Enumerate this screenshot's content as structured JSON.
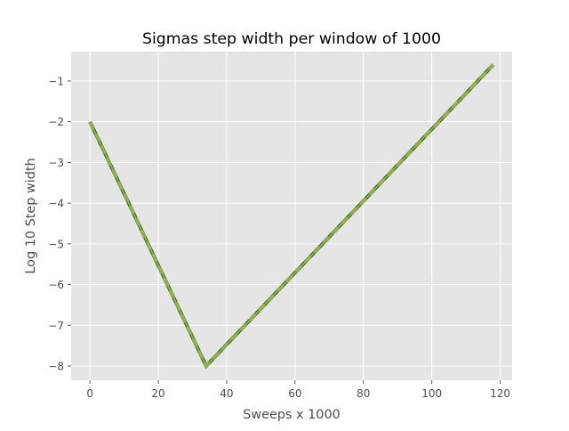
{
  "chart_data": {
    "type": "line",
    "title": "Sigmas step width per window of 1000",
    "xlabel": "Sweeps x 1000",
    "ylabel": "Log 10 Step width",
    "xlim": [
      -5.5,
      123.5
    ],
    "ylim": [
      -8.35,
      -0.28
    ],
    "x_ticks": [
      0,
      20,
      40,
      60,
      80,
      100,
      120
    ],
    "y_ticks": [
      -8,
      -7,
      -6,
      -5,
      -4,
      -3,
      -2,
      -1
    ],
    "x_tick_labels": [
      "0",
      "20",
      "40",
      "60",
      "80",
      "100",
      "120"
    ],
    "y_tick_labels": [
      "−8",
      "−7",
      "−6",
      "−5",
      "−4",
      "−3",
      "−2",
      "−1"
    ],
    "grid": true,
    "style": "ggplot",
    "colors": {
      "axes_background": "#e5e5e5",
      "grid": "#ffffff",
      "series": [
        "#2d6a2d",
        "#d6c36a",
        "#8fae3a"
      ]
    },
    "series": [
      {
        "x": [
          0,
          34,
          118
        ],
        "y": [
          -2.0,
          -8.0,
          -0.6
        ]
      },
      {
        "x": [
          0,
          34,
          118
        ],
        "y": [
          -2.0,
          -8.0,
          -0.6
        ]
      },
      {
        "x": [
          0,
          34,
          118
        ],
        "y": [
          -2.0,
          -8.0,
          -0.6
        ]
      }
    ]
  }
}
